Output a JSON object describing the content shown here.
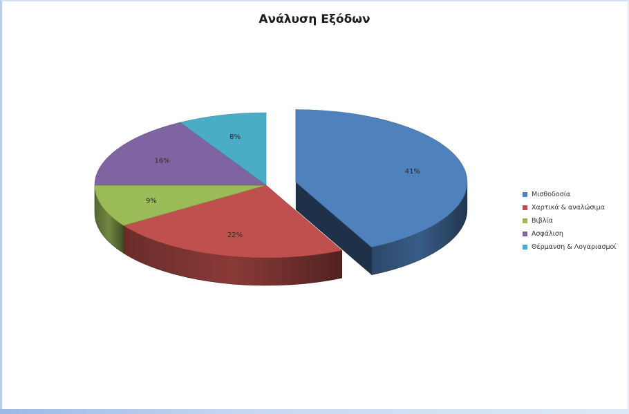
{
  "chart_data": {
    "type": "pie",
    "title": "Ανάλυση Εξόδων",
    "categories": [
      "Μισθοδοσία",
      "Χαρτικά & αναλώσιμα",
      "Βιβλία",
      "Ασφάλιση",
      "Θέρμανση & Λογαριασμοί"
    ],
    "values": [
      41,
      22,
      9,
      16,
      8
    ],
    "value_labels": [
      "41%",
      "22%",
      "9%",
      "16%",
      "8%"
    ],
    "colors": [
      "#4f81bd",
      "#c0504d",
      "#9bbb59",
      "#8064a2",
      "#4bacc6"
    ],
    "exploded": [
      "Μισθοδοσία"
    ],
    "style": "3d",
    "legend_position": "right"
  }
}
